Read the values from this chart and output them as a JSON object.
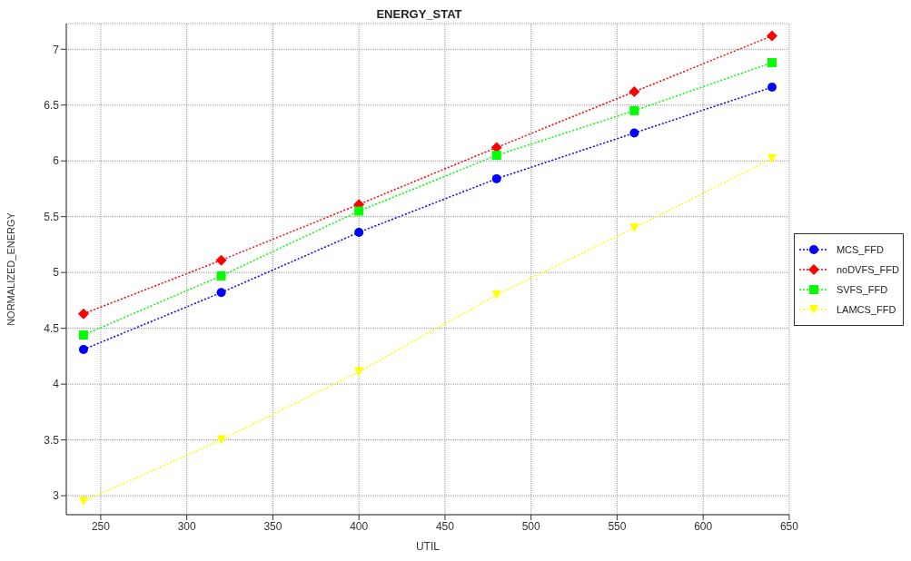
{
  "chart_data": {
    "type": "line",
    "title": "ENERGY_STAT",
    "xlabel": "UTIL",
    "ylabel": "NORMALIZED_ENERGY",
    "x": [
      240,
      320,
      400,
      480,
      560,
      640
    ],
    "series": [
      {
        "name": "MCS_FFD",
        "color": "#0000ff",
        "marker": "circle",
        "values": [
          4.31,
          4.82,
          5.36,
          5.84,
          6.25,
          6.66
        ]
      },
      {
        "name": "noDVFS_FFD",
        "color": "#ff0000",
        "marker": "diamond",
        "values": [
          4.63,
          5.11,
          5.61,
          6.12,
          6.62,
          7.12
        ]
      },
      {
        "name": "SVFS_FFD",
        "color": "#00ff00",
        "marker": "square",
        "values": [
          4.44,
          4.97,
          5.55,
          6.05,
          6.45,
          6.88
        ]
      },
      {
        "name": "LAMCS_FFD",
        "color": "#ffff00",
        "marker": "triangle",
        "values": [
          2.95,
          3.5,
          4.11,
          4.8,
          5.4,
          6.02
        ]
      }
    ],
    "xlim": [
      230,
      650
    ],
    "xticks": [
      250,
      300,
      350,
      400,
      450,
      500,
      550,
      600,
      650
    ],
    "ylim": [
      2.83,
      7.23
    ],
    "yticks": [
      3,
      3.5,
      4,
      4.5,
      5,
      5.5,
      6,
      6.5,
      7
    ],
    "grid": true,
    "legend": "right",
    "line_style": "dotted"
  }
}
